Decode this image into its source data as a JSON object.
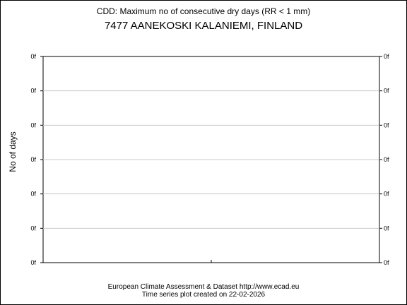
{
  "header": {
    "title": "CDD: Maximum no of consecutive dry days (RR < 1 mm)",
    "station": "7477 AANEKOSKI KALANIEMI, FINLAND"
  },
  "footer": {
    "line1": "European Climate Assessment & Dataset  http://www.ecad.eu",
    "line2": "Time series plot created on 22-02-2026"
  },
  "chart_data": {
    "type": "line",
    "title": "CDD: Maximum no of consecutive dry days (RR < 1 mm)",
    "subtitle": "7477 AANEKOSKI KALANIEMI, FINLAND",
    "xlabel": "",
    "ylabel": "No of days",
    "yticks_left": [
      "0f",
      "0f",
      "0f",
      "0f",
      "0f",
      "0f",
      "0f"
    ],
    "yticks_right": [
      "0f",
      "0f",
      "0f",
      "0f",
      "0f",
      "0f",
      "0f"
    ],
    "x_tick_count": 1,
    "series": [],
    "grid": true,
    "legend": "none",
    "colors": {
      "frame": "#000000",
      "grid": "#c8c8c8",
      "background": "#ffffff"
    }
  }
}
